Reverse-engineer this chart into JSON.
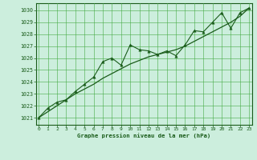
{
  "title": "Graphe pression niveau de la mer (hPa)",
  "bg_color": "#cceedd",
  "grid_color": "#44aa44",
  "line_color": "#1a5c1a",
  "marker_color": "#1a5c1a",
  "ylim": [
    1020.4,
    1030.6
  ],
  "xlim": [
    -0.3,
    23.3
  ],
  "yticks": [
    1021,
    1022,
    1023,
    1024,
    1025,
    1026,
    1027,
    1028,
    1029,
    1030
  ],
  "xticks": [
    0,
    1,
    2,
    3,
    4,
    5,
    6,
    7,
    8,
    9,
    10,
    11,
    12,
    13,
    14,
    15,
    16,
    17,
    18,
    19,
    20,
    21,
    22,
    23
  ],
  "hours": [
    0,
    1,
    2,
    3,
    4,
    5,
    6,
    7,
    8,
    9,
    10,
    11,
    12,
    13,
    14,
    15,
    16,
    17,
    18,
    19,
    20,
    21,
    22,
    23
  ],
  "pressure_zigzag": [
    1021.0,
    1021.8,
    1022.3,
    1022.5,
    1023.2,
    1023.8,
    1024.4,
    1025.7,
    1026.0,
    1025.4,
    1027.1,
    1026.7,
    1026.6,
    1026.3,
    1026.6,
    1026.2,
    1027.1,
    1028.3,
    1028.2,
    1029.0,
    1029.8,
    1028.5,
    1029.8,
    1030.2
  ],
  "pressure_smooth": [
    1021.0,
    1021.5,
    1022.0,
    1022.5,
    1023.0,
    1023.4,
    1023.8,
    1024.3,
    1024.7,
    1025.1,
    1025.5,
    1025.8,
    1026.1,
    1026.3,
    1026.5,
    1026.7,
    1027.0,
    1027.4,
    1027.8,
    1028.2,
    1028.6,
    1029.0,
    1029.5,
    1030.2
  ]
}
